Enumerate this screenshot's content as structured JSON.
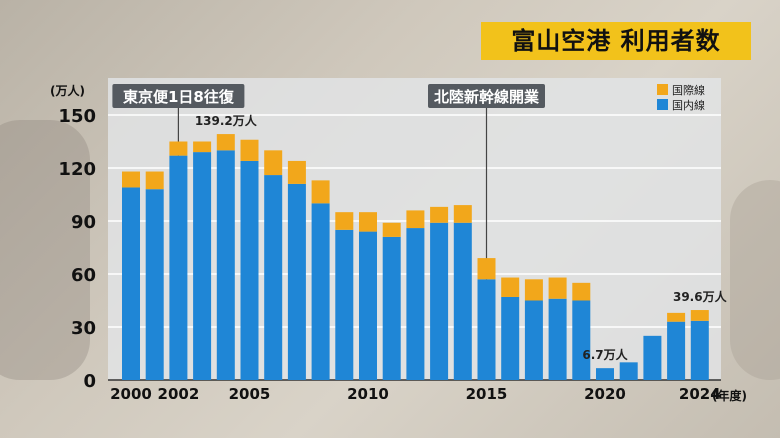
{
  "title": "富山空港 利用者数",
  "chart_data": {
    "type": "bar",
    "stacked": true,
    "y_unit": "(万人)",
    "x_unit": "(年度)",
    "ylim": [
      0,
      150
    ],
    "yticks": [
      0,
      30,
      60,
      90,
      120,
      150
    ],
    "categories": [
      "2000",
      "2001",
      "2002",
      "2003",
      "2004",
      "2005",
      "2006",
      "2007",
      "2008",
      "2009",
      "2010",
      "2011",
      "2012",
      "2013",
      "2014",
      "2015",
      "2016",
      "2017",
      "2018",
      "2019",
      "2020",
      "2021",
      "2022",
      "2023",
      "2024"
    ],
    "xtick_labels": [
      {
        "category": "2000",
        "label": "2000"
      },
      {
        "category": "2002",
        "label": "2002"
      },
      {
        "category": "2005",
        "label": "2005"
      },
      {
        "category": "2010",
        "label": "2010"
      },
      {
        "category": "2015",
        "label": "2015"
      },
      {
        "category": "2020",
        "label": "2020"
      },
      {
        "category": "2024",
        "label": "2024"
      }
    ],
    "series": [
      {
        "name": "国内線",
        "color": "#1f86d6",
        "values": [
          109,
          108,
          127,
          129,
          130,
          124,
          116,
          111,
          100,
          85,
          84,
          81,
          86,
          89,
          89,
          57,
          47,
          45,
          46,
          45,
          6.7,
          10,
          25,
          33,
          33.5
        ]
      },
      {
        "name": "国際線",
        "color": "#f2a71b",
        "values": [
          9,
          10,
          8,
          6,
          9.2,
          12,
          14,
          13,
          13,
          10,
          11,
          8,
          10,
          9,
          10,
          12,
          11,
          12,
          12,
          10,
          0,
          0,
          0,
          5,
          6.1
        ]
      }
    ],
    "legend": {
      "position": "top-right"
    },
    "data_labels": [
      {
        "category": "2004",
        "text": "139.2万人"
      },
      {
        "category": "2020",
        "text": "6.7万人"
      },
      {
        "category": "2024",
        "text": "39.6万人"
      }
    ],
    "annotations": [
      {
        "category": "2002",
        "text": "東京便1日8往復"
      },
      {
        "category": "2015",
        "text": "北陸新幹線開業"
      }
    ]
  }
}
